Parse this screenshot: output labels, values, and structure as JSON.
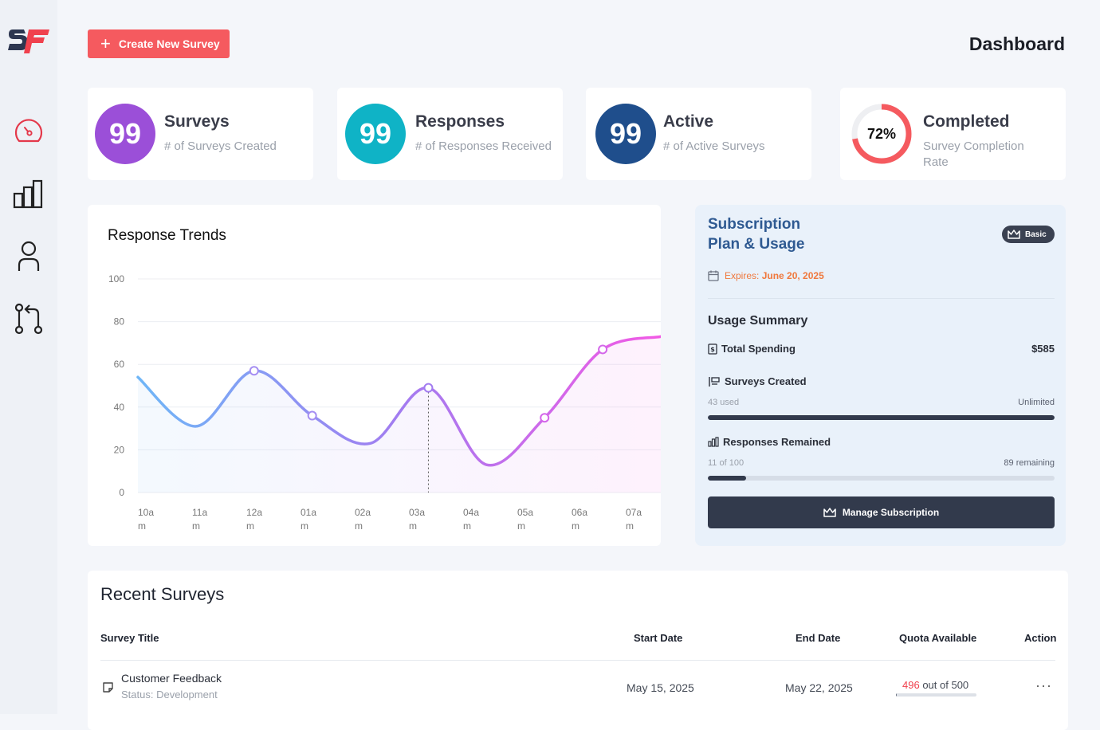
{
  "app": {
    "logo_text": "SF"
  },
  "sidebar": {
    "items": [
      {
        "name": "dashboard",
        "icon": "gauge-icon"
      },
      {
        "name": "analytics",
        "icon": "bar-chart-icon"
      },
      {
        "name": "profile",
        "icon": "user-icon"
      },
      {
        "name": "integrations",
        "icon": "git-pull-request-icon"
      }
    ]
  },
  "header": {
    "create_label": "Create New Survey",
    "title": "Dashboard"
  },
  "stats": [
    {
      "value": "99",
      "title": "Surveys",
      "subtitle": "# of Surveys Created",
      "color": "#9b4fd8"
    },
    {
      "value": "99",
      "title": "Responses",
      "subtitle": "# of Responses Received",
      "color": "#0fb3c6"
    },
    {
      "value": "99",
      "title": "Active",
      "subtitle": "# of Active Surveys",
      "color": "#1f4e8c"
    },
    {
      "value": "72%",
      "title": "Completed",
      "subtitle": "Survey Completion Rate",
      "color": "#f55a5f",
      "progress": 0.72
    }
  ],
  "trends": {
    "title": "Response Trends"
  },
  "chart_data": {
    "type": "line",
    "title": "Response Trends",
    "categories": [
      "10am",
      "11am",
      "12am",
      "01am",
      "02am",
      "03am",
      "04am",
      "05am",
      "06am",
      "07am"
    ],
    "x_tick_labels": [
      [
        "10a",
        "m"
      ],
      [
        "11a",
        "m"
      ],
      [
        "12a",
        "m"
      ],
      [
        "01a",
        "m"
      ],
      [
        "02a",
        "m"
      ],
      [
        "03a",
        "m"
      ],
      [
        "04a",
        "m"
      ],
      [
        "05a",
        "m"
      ],
      [
        "06a",
        "m"
      ],
      [
        "07a",
        "m"
      ]
    ],
    "yticks": [
      0,
      20,
      40,
      60,
      80,
      100
    ],
    "ylim": [
      0,
      100
    ],
    "series": [
      {
        "values": [
          54,
          31,
          57,
          36,
          23,
          49,
          13,
          35,
          67,
          73
        ]
      }
    ],
    "markers_at": [
      2,
      3,
      5,
      7,
      8
    ],
    "hover_index": 5,
    "colors": {
      "start": "#6fb6f7",
      "mid": "#a27cf0",
      "end": "#f25ae5"
    }
  },
  "subscription": {
    "title_line1": "Subscription",
    "title_line2": "Plan & Usage",
    "plan_badge": "Basic",
    "expires_label": "Expires:",
    "expires_date": "June 20, 2025",
    "usage_title": "Usage Summary",
    "spending_label": "Total Spending",
    "spending_value": "$585",
    "surveys_label": "Surveys Created",
    "surveys_used": "43 used",
    "surveys_limit": "Unlimited",
    "surveys_progress": 1.0,
    "responses_label": "Responses Remained",
    "responses_used": "11 of 100",
    "responses_remaining": "89 remaining",
    "responses_progress": 0.11,
    "manage_label": "Manage Subscription"
  },
  "recent": {
    "title": "Recent Surveys",
    "columns": {
      "title": "Survey Title",
      "start": "Start Date",
      "end": "End Date",
      "quota": "Quota Available",
      "action": "Action"
    },
    "rows": [
      {
        "title": "Customer Feedback",
        "status": "Status: Development",
        "start": "May 15, 2025",
        "end": "May 22, 2025",
        "quota_used": "496",
        "quota_total": "out of 500",
        "quota_progress": 0.008,
        "action": "···"
      }
    ]
  }
}
